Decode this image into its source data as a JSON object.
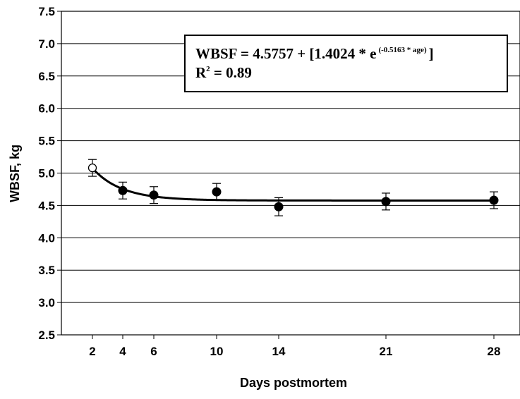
{
  "chart_data": {
    "type": "scatter",
    "xlabel": "Days postmortem",
    "ylabel": "WBSF, kg",
    "x_ticks": [
      "2",
      "4",
      "6",
      "10",
      "14",
      "21",
      "28"
    ],
    "y_ticks": [
      "2.5",
      "3.0",
      "3.5",
      "4.0",
      "4.5",
      "5.0",
      "5.5",
      "6.0",
      "6.5",
      "7.0",
      "7.5"
    ],
    "ylim": [
      2.5,
      7.5
    ],
    "grid": "horizontal",
    "points": [
      {
        "x": 2,
        "y": 5.08,
        "err": 0.13,
        "marker": "open"
      },
      {
        "x": 4,
        "y": 4.73,
        "err": 0.13,
        "marker": "filled"
      },
      {
        "x": 6,
        "y": 4.66,
        "err": 0.13,
        "marker": "filled"
      },
      {
        "x": 10,
        "y": 4.71,
        "err": 0.13,
        "marker": "filled"
      },
      {
        "x": 14,
        "y": 4.48,
        "err": 0.14,
        "marker": "filled"
      },
      {
        "x": 21,
        "y": 4.56,
        "err": 0.13,
        "marker": "filled"
      },
      {
        "x": 28,
        "y": 4.58,
        "err": 0.13,
        "marker": "filled"
      }
    ],
    "fit": {
      "a": 4.5757,
      "b": 1.4024,
      "k": 0.5163
    },
    "equation": {
      "prefix": "WBSF = 4.5757 + [1.4024 * e",
      "exponent": "(-0.5163 * age)",
      "suffix": "]",
      "r2_prefix": "R",
      "r2_sup": "2",
      "r2_suffix": " = 0.89"
    }
  }
}
